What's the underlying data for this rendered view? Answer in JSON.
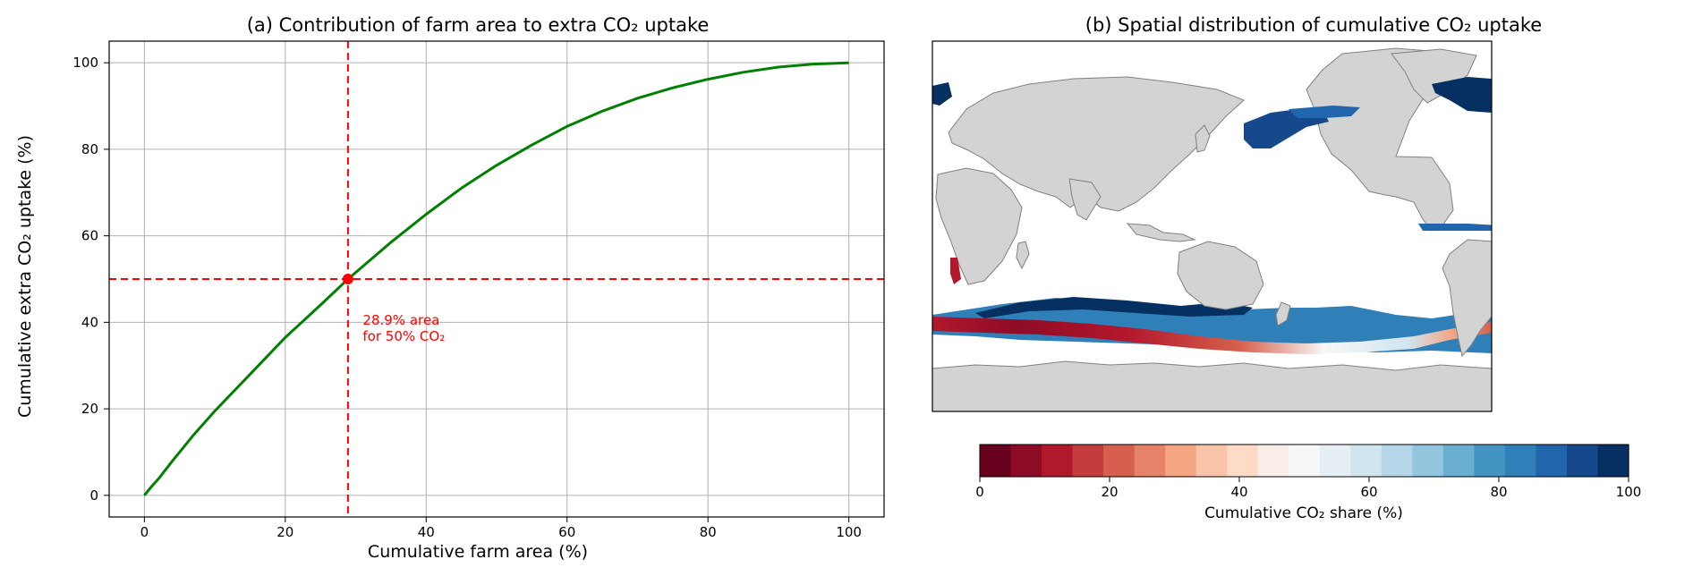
{
  "chart_data": [
    {
      "type": "line",
      "title": "(a) Contribution of farm area to extra CO₂ uptake",
      "xlabel": "Cumulative farm area (%)",
      "ylabel": "Cumulative extra CO₂ uptake (%)",
      "xlim": [
        -5,
        105
      ],
      "ylim": [
        -5,
        105
      ],
      "xticks": [
        0,
        20,
        40,
        60,
        80,
        100
      ],
      "yticks": [
        0,
        20,
        40,
        60,
        80,
        100
      ],
      "grid": true,
      "series": [
        {
          "color": "#008000",
          "x": [
            0,
            1,
            2,
            4,
            7,
            10,
            15,
            20,
            25,
            28.9,
            35,
            40,
            45,
            50,
            55,
            60,
            65,
            70,
            75,
            80,
            85,
            90,
            95,
            100
          ],
          "y": [
            0,
            2,
            3.8,
            8,
            14,
            19.5,
            28,
            36.5,
            44,
            50,
            58.5,
            65,
            71,
            76.3,
            81,
            85.3,
            88.8,
            91.8,
            94.2,
            96.2,
            97.8,
            99,
            99.7,
            100
          ]
        }
      ],
      "reference_lines": {
        "x": 28.9,
        "y": 50,
        "color": "#ff0000"
      },
      "marker": {
        "x": 28.9,
        "y": 50,
        "color": "#ff0000"
      },
      "annotation": {
        "lines": [
          "28.9% area",
          "for 50% CO₂"
        ],
        "x": 31,
        "y": 39.5,
        "color": "#ff0000"
      }
    },
    {
      "type": "heatmap",
      "title": "(b) Spatial distribution of cumulative CO₂ uptake",
      "colorbar": {
        "label": "Cumulative CO₂ share (%)",
        "range": [
          0,
          100
        ],
        "ticks": [
          0,
          20,
          40,
          60,
          80,
          100
        ],
        "colors": [
          "#67001f",
          "#8e0b25",
          "#b2182b",
          "#c43c3c",
          "#d6604d",
          "#e58267",
          "#f4a582",
          "#f9c4a9",
          "#fddbc7",
          "#f8ede8",
          "#f7f7f7",
          "#e6eff4",
          "#d1e5f0",
          "#b4d6e8",
          "#92c5de",
          "#6aaed2",
          "#4393c3",
          "#2f7fb9",
          "#2166ac",
          "#15498c",
          "#053061"
        ]
      },
      "land_color": "#d3d3d3",
      "coast_color": "#808080"
    }
  ]
}
